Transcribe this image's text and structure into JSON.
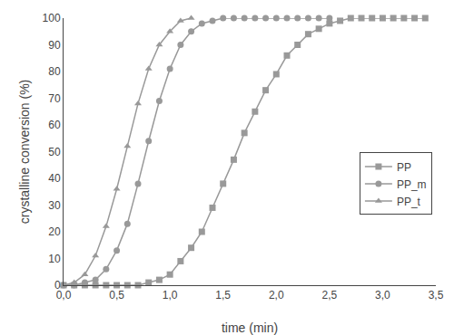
{
  "chart_data": {
    "type": "line",
    "xlabel": "time (min)",
    "ylabel": "crystalline conversion (%)",
    "xlim": [
      0.0,
      3.5
    ],
    "ylim": [
      0,
      100
    ],
    "xticks": [
      {
        "value": 0.0,
        "label": "0,0"
      },
      {
        "value": 0.5,
        "label": "0,5"
      },
      {
        "value": 1.0,
        "label": "1,0"
      },
      {
        "value": 1.5,
        "label": "1,5"
      },
      {
        "value": 2.0,
        "label": "2,0"
      },
      {
        "value": 2.5,
        "label": "2,5"
      },
      {
        "value": 3.0,
        "label": "3,0"
      },
      {
        "value": 3.5,
        "label": "3,5"
      }
    ],
    "yticks": [
      0,
      10,
      20,
      30,
      40,
      50,
      60,
      70,
      80,
      90,
      100
    ],
    "grid": false,
    "legend": "right",
    "series": [
      {
        "name": "PP",
        "color": "#999999",
        "marker": "square",
        "x": [
          0.0,
          0.1,
          0.2,
          0.3,
          0.4,
          0.5,
          0.6,
          0.7,
          0.8,
          0.9,
          1.0,
          1.1,
          1.2,
          1.3,
          1.4,
          1.5,
          1.6,
          1.7,
          1.8,
          1.9,
          2.0,
          2.1,
          2.2,
          2.3,
          2.4,
          2.5,
          2.6,
          2.7,
          2.8,
          2.9,
          3.0,
          3.1,
          3.2,
          3.3,
          3.4
        ],
        "values": [
          0,
          0,
          0,
          0,
          0,
          0,
          0,
          0,
          1,
          2,
          4,
          9,
          14,
          20,
          29,
          38,
          47,
          57,
          65,
          73,
          79,
          86,
          90,
          94,
          96,
          98,
          99,
          100,
          100,
          100,
          100,
          100,
          100,
          100,
          100
        ]
      },
      {
        "name": "PP_m",
        "color": "#999999",
        "marker": "circle",
        "x": [
          0.0,
          0.1,
          0.2,
          0.3,
          0.4,
          0.5,
          0.6,
          0.7,
          0.8,
          0.9,
          1.0,
          1.1,
          1.2,
          1.3,
          1.4,
          1.5,
          1.6,
          1.7,
          1.8,
          1.9,
          2.0,
          2.1,
          2.2,
          2.3,
          2.4,
          2.5
        ],
        "values": [
          0,
          0,
          1,
          2,
          6,
          13,
          23,
          38,
          54,
          69,
          81,
          90,
          95,
          98,
          99,
          100,
          100,
          100,
          100,
          100,
          100,
          100,
          100,
          100,
          100,
          100
        ]
      },
      {
        "name": "PP_t",
        "color": "#999999",
        "marker": "triangle-up",
        "x": [
          0.0,
          0.1,
          0.2,
          0.3,
          0.4,
          0.5,
          0.6,
          0.7,
          0.8,
          0.9,
          1.0,
          1.1,
          1.2
        ],
        "values": [
          0,
          1,
          4,
          11,
          22,
          36,
          52,
          68,
          81,
          90,
          95,
          99,
          100
        ]
      }
    ]
  }
}
